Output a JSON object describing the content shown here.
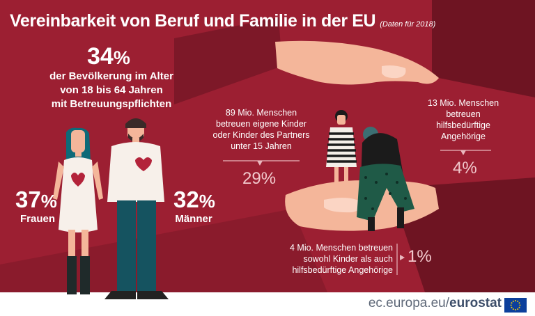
{
  "title": "Vereinbarkeit von Beruf und Familie in der EU",
  "subtitle": "(Daten für 2018)",
  "population": {
    "value": "34",
    "unit": "%",
    "description": [
      "der Bevölkerung im Alter",
      "von 18 bis 64 Jahren",
      "mit Betreuungspflichten"
    ]
  },
  "women": {
    "value": "37",
    "unit": "%",
    "label": "Frauen"
  },
  "men": {
    "value": "32",
    "unit": "%",
    "label": "Männer"
  },
  "children_care": {
    "lines": [
      "89 Mio. Menschen",
      "betreuen eigene Kinder",
      "oder Kinder des Partners",
      "unter 15 Jahren"
    ],
    "percent": "29%"
  },
  "relatives_care": {
    "lines": [
      "13  Mio. Menschen",
      "betreuen",
      "hilfsbedürftige",
      "Angehörige"
    ],
    "percent": "4%"
  },
  "both_care": {
    "lines": [
      "4 Mio. Menschen betreuen",
      "sowohl Kinder als auch",
      "hilfsbedürftige Angehörige"
    ],
    "percent": "1%"
  },
  "footer": {
    "site": "ec.europa.eu/",
    "brand": "eurostat"
  },
  "colors": {
    "background": "#9c1f32",
    "dark_band": "#6e1422",
    "hand": "#f4b69a",
    "accent_light": "#f2c9cd",
    "footer_text": "#5d6777"
  }
}
